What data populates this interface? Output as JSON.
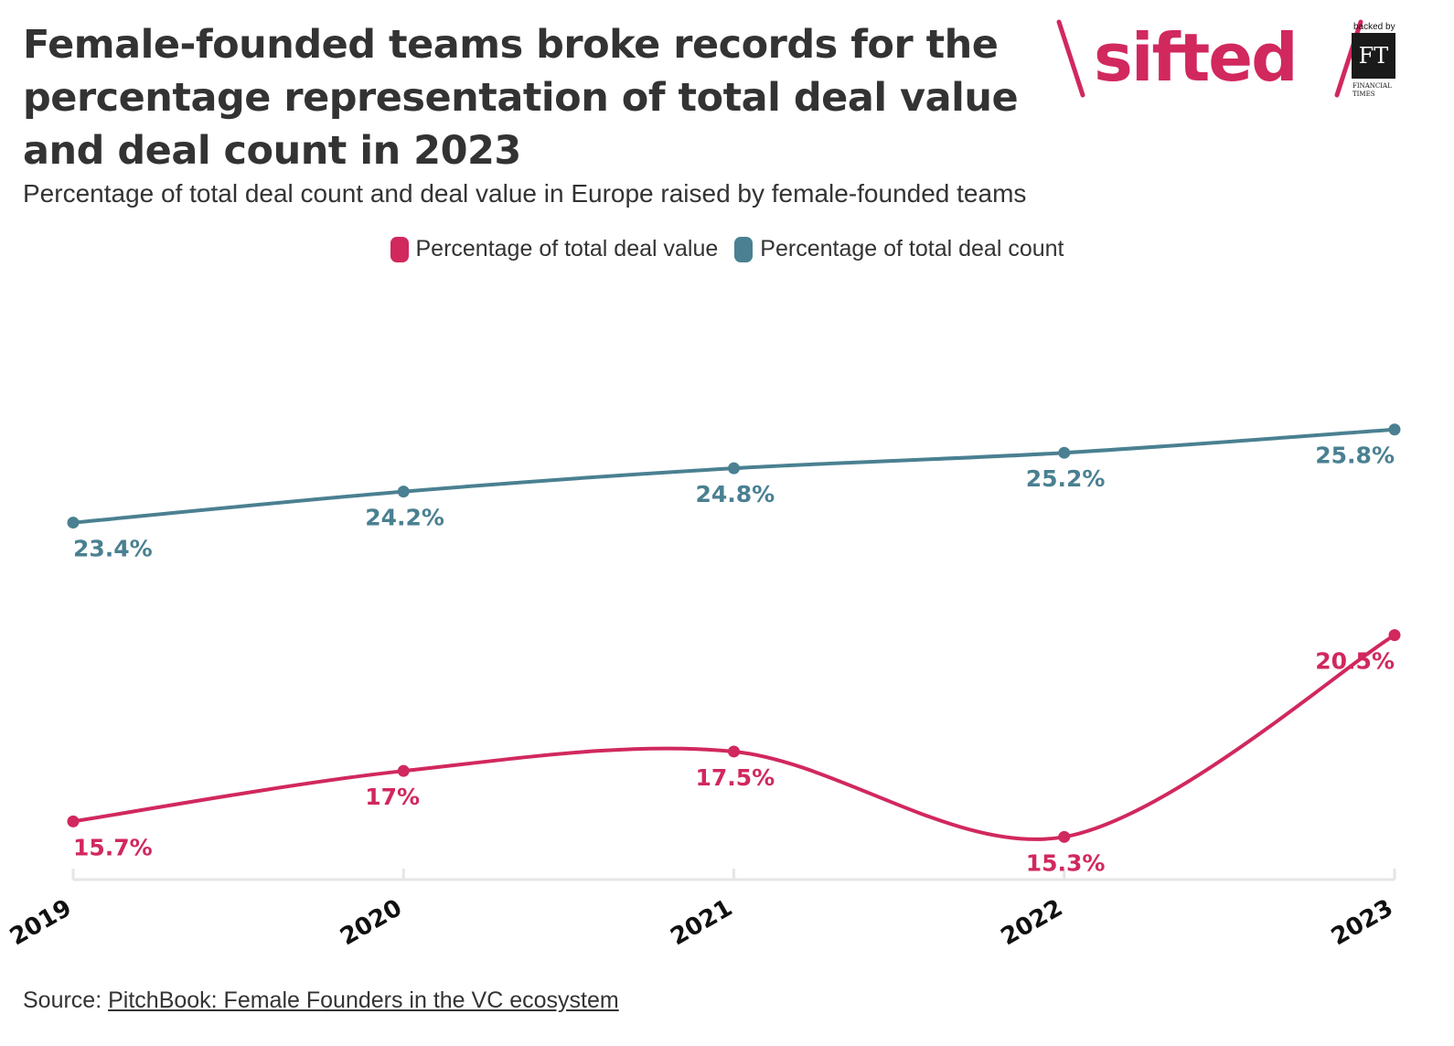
{
  "header": {
    "title": "Female-founded teams broke records for the percentage representation of total deal value and deal count in 2023",
    "subtitle": "Percentage of total deal count and deal value in Europe raised by female-founded teams"
  },
  "brand": {
    "name": "sifted",
    "backed_by": "backed by",
    "ft_mark": "FT",
    "ft_line1": "FINANCIAL",
    "ft_line2": "TIMES",
    "color": "#d1285e"
  },
  "chart_data": {
    "type": "line",
    "x": [
      "2019",
      "2020",
      "2021",
      "2022",
      "2023"
    ],
    "series": [
      {
        "name": "Percentage of total deal value",
        "color": "#d1285e",
        "values": [
          15.7,
          17,
          17.5,
          15.3,
          20.5
        ],
        "labels": [
          "15.7%",
          "17%",
          "17.5%",
          "15.3%",
          "20.5%"
        ]
      },
      {
        "name": "Percentage of total deal count",
        "color": "#4a8091",
        "values": [
          23.4,
          24.2,
          24.8,
          25.2,
          25.8
        ],
        "labels": [
          "23.4%",
          "24.2%",
          "24.8%",
          "25.2%",
          "25.8%"
        ]
      }
    ],
    "ylim": [
      14.2,
      29.8
    ],
    "grid": false,
    "legend": "top-center",
    "xlabel": "",
    "ylabel": ""
  },
  "footer": {
    "source_prefix": "Source: ",
    "source_link": "PitchBook: Female Founders in the VC ecosystem"
  }
}
